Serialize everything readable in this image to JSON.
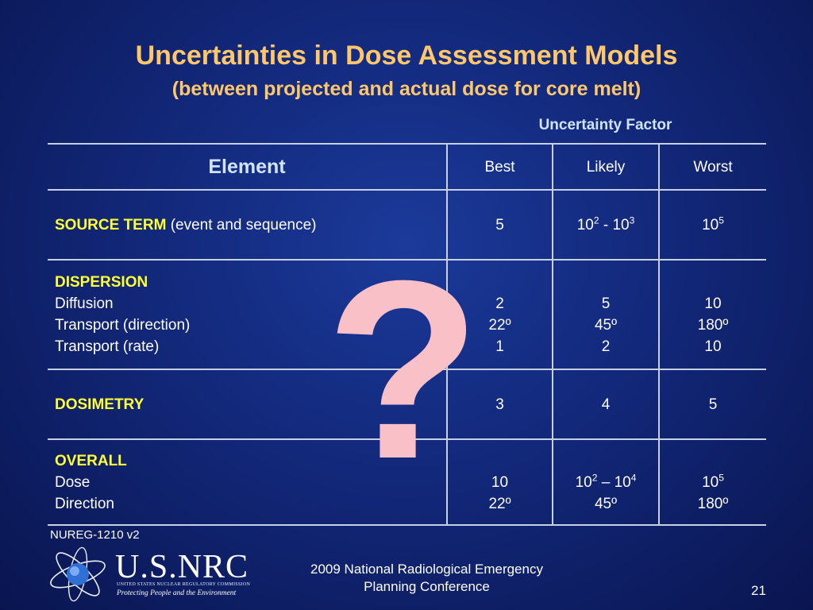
{
  "slide": {
    "title": "Uncertainties in Dose Assessment Models",
    "subtitle": "(between projected and actual dose for core melt)",
    "uncertainty_label": "Uncertainty Factor",
    "question_mark": "?"
  },
  "table": {
    "header": {
      "element": "Element",
      "best": "Best",
      "likely": "Likely",
      "worst": "Worst"
    },
    "source_term": {
      "label": "SOURCE TERM",
      "detail": "(event and sequence)",
      "best": "5",
      "likely_a": "10",
      "likely_a_exp": "2",
      "likely_sep": " - ",
      "likely_b": "10",
      "likely_b_exp": "3",
      "worst": "10",
      "worst_exp": "5"
    },
    "dispersion": {
      "label": "DISPERSION",
      "rows": [
        {
          "name": "Diffusion",
          "best": "2",
          "likely": "5",
          "worst": "10"
        },
        {
          "name": "Transport (direction)",
          "best": "22º",
          "likely": "45º",
          "worst": "180º"
        },
        {
          "name": "Transport (rate)",
          "best": "1",
          "likely": "2",
          "worst": "10"
        }
      ]
    },
    "dosimetry": {
      "label": "DOSIMETRY",
      "best": "3",
      "likely": "4",
      "worst": "5"
    },
    "overall": {
      "label": "OVERALL",
      "dose": {
        "name": "Dose",
        "best": "10",
        "likely_a": "10",
        "likely_a_exp": "2",
        "likely_sep": " – ",
        "likely_b": "10",
        "likely_b_exp": "4",
        "worst": "10",
        "worst_exp": "5"
      },
      "direction": {
        "name": "Direction",
        "best": "22º",
        "likely": "45º",
        "worst": "180º"
      }
    }
  },
  "footer": {
    "reference": "NUREG-1210 v2",
    "logo_text": "U.S.NRC",
    "logo_subtitle": "UNITED STATES NUCLEAR REGULATORY COMMISSION",
    "logo_tagline": "Protecting People and the Environment",
    "conference_line1": "2009 National Radiological Emergency",
    "conference_line2": "Planning Conference",
    "page_number": "21"
  },
  "colors": {
    "background": "#12287a",
    "title": "#ffc76b",
    "header_text": "#d0e4ff",
    "highlight_label": "#ffff33",
    "question_mark": "#f9c0c8",
    "grid_lines": "#c8d0e6"
  }
}
